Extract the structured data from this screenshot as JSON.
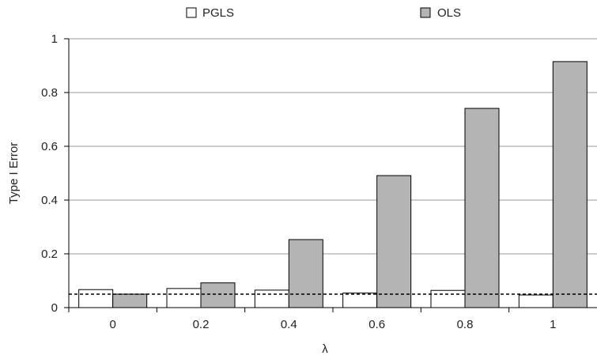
{
  "chart_data": {
    "type": "bar",
    "title": "",
    "xlabel": "λ",
    "ylabel": "Type I Error",
    "categories": [
      "0",
      "0.2",
      "0.4",
      "0.6",
      "0.8",
      "1"
    ],
    "series": [
      {
        "name": "PGLS",
        "color": "#ffffff",
        "values": [
          0.067,
          0.071,
          0.065,
          0.054,
          0.064,
          0.047
        ]
      },
      {
        "name": "OLS",
        "color": "#b4b4b4",
        "values": [
          0.05,
          0.092,
          0.253,
          0.491,
          0.741,
          0.915
        ]
      }
    ],
    "ylim": [
      0,
      1
    ],
    "yticks": [
      "0",
      "0.2",
      "0.4",
      "0.6",
      "0.8",
      "1"
    ],
    "reference_line": {
      "value": 0.05,
      "style": "dashed"
    },
    "grid": true,
    "legend_position": "top"
  }
}
